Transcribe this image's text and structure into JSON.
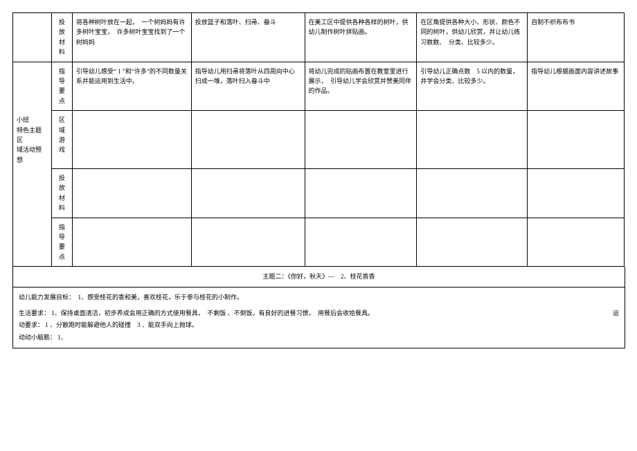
{
  "sideLabel": "小班\n特色主题区\n域活动预想",
  "rowLabels": {
    "r1": "投\n放\n材\n料",
    "r2": "指\n导\n要\n点",
    "r3": "区\n域\n游\n戏",
    "r4": "投\n放\n材\n料",
    "r5": "指\n导\n要\n点"
  },
  "grid": {
    "r1": {
      "c1": "将各种树叶放在一起，　一个树妈妈有许多树叶宝宝，　许多树叶宝宝找到了一个树妈妈",
      "c2": "投放篮子和落叶、扫帚、畚斗",
      "c3": "在美工区中提供各种各样的树叶，供幼儿制作树叶拼贴画。",
      "c4": "在区角提供各种大小、形状、颜色不同的树叶，供幼儿欣赏，并让幼儿练习数数、　分类、比较多少。",
      "c5": "自制不织布布书"
    },
    "r2": {
      "c1": "引导幼儿感受“ 1 ”和“许多”的不同数量关系并能运用到生活中。",
      "c2": "指导幼儿用扫帚将落叶从四周向中心扫成一堆，落叶扫入畚斗中",
      "c3": "将幼儿完成的贴画布置在教室里进行展示，　引导幼儿学会欣赏并赞美同伴的作品。",
      "c4": "引导幼儿正确点数　5 以内的数量，并学会分类、比较多少。",
      "c5": "指导幼儿根据画面内容讲述故事"
    },
    "r3": {
      "c1": "",
      "c2": "",
      "c3": "",
      "c4": "",
      "c5": ""
    },
    "r4": {
      "c1": "",
      "c2": "",
      "c3": "",
      "c4": "",
      "c5": ""
    },
    "r5": {
      "c1": "",
      "c2": "",
      "c3": "",
      "c4": "",
      "c5": ""
    }
  },
  "themeTitle": "主题二：《你好，秋天》—　2、桂花香香",
  "goals": "幼儿能力发展目标：　1、感受桂花的香和美，喜欢桂花，乐于参与桂花的小制作。",
  "lifeReq": "生活要求： 1、保持桌面清洁，初步养成会用正确的方式使用餐具，　不剩饭 、不倒饭，有良好的进餐习惯，　用餐后会收拾餐具。",
  "sportReqLabel": "运",
  "sportReq": "动要求： 1 、分散跑时能躲避他人的碰撞　3 、能双手向上抛球。",
  "brain": "动动小脑筋： 1、"
}
